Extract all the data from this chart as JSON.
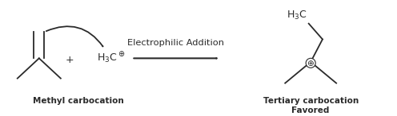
{
  "bg_color": "#ffffff",
  "text_color": "#2a2a2a",
  "title_above_arrow": "Electrophilic Addition",
  "label_left": "Methyl carbocation",
  "label_right_line1": "Tertiary carbocation",
  "label_right_line2": "Favored",
  "plus_sign": "+",
  "figsize": [
    4.96,
    1.46
  ],
  "dpi": 100
}
